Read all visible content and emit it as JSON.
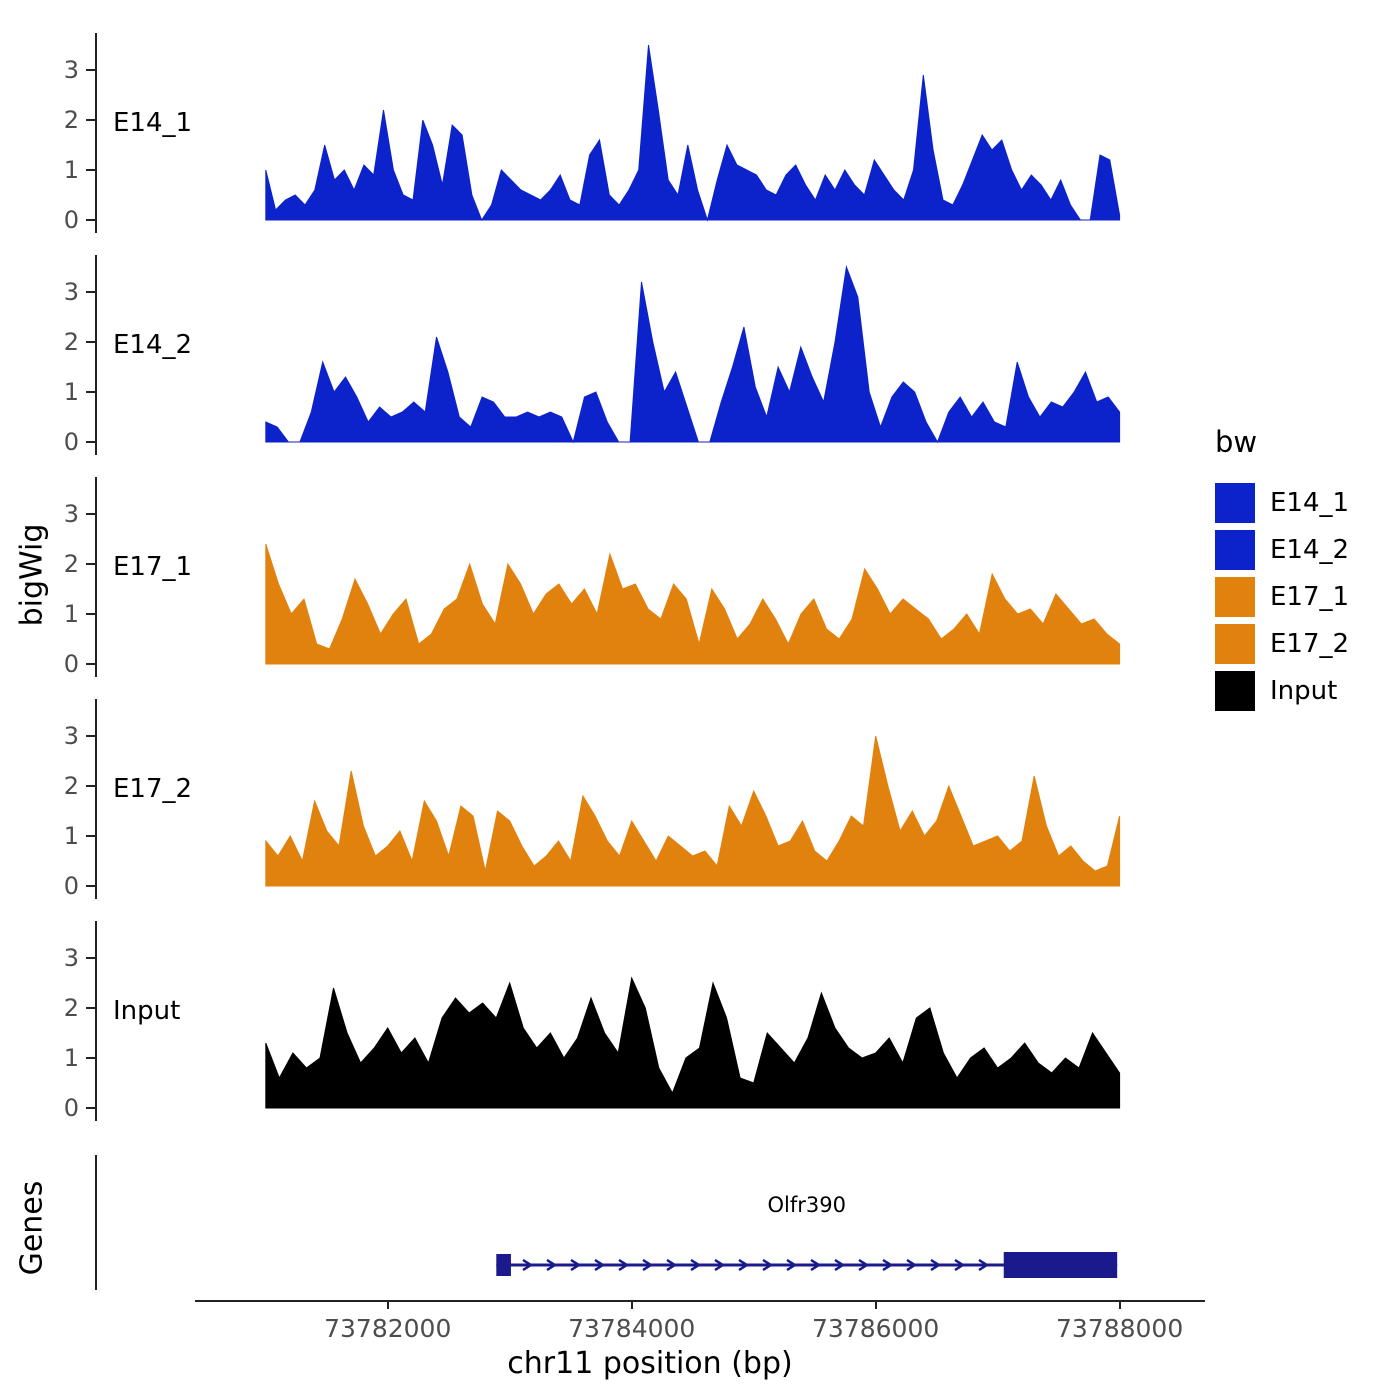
{
  "ylabel": "bigWig",
  "genes_label": "Genes",
  "legend": {
    "title": "bw",
    "items": [
      {
        "label": "E14_1",
        "color": "#0C23CB"
      },
      {
        "label": "E14_2",
        "color": "#0C23CB"
      },
      {
        "label": "E17_1",
        "color": "#E2820E"
      },
      {
        "label": "E17_2",
        "color": "#E2820E"
      },
      {
        "label": "Input",
        "color": "#000000"
      }
    ]
  },
  "axis": {
    "domain": [
      73779600,
      73788700
    ],
    "x_tick_values": [
      73782000,
      73784000,
      73786000,
      73788000
    ],
    "x_tick_labels": [
      "73782000",
      "73784000",
      "73786000",
      "73788000"
    ],
    "y_ticks": [
      0,
      1,
      2,
      3
    ]
  },
  "chart_data": {
    "type": "area",
    "title": "",
    "xlabel": "chr11 position (bp)",
    "ylabel": "bigWig",
    "x_start": 73781000,
    "x_end": 73788000,
    "ylim": [
      0,
      3.5
    ],
    "x_ticks": [
      73782000,
      73784000,
      73786000,
      73788000
    ],
    "y_ticks": [
      0,
      1,
      2,
      3
    ],
    "legend_title": "bw",
    "series": [
      {
        "name": "E14_1",
        "color": "#0C23CB",
        "values": [
          1.0,
          0.2,
          0.4,
          0.5,
          0.3,
          0.6,
          1.5,
          0.8,
          1.0,
          0.6,
          1.1,
          0.9,
          2.2,
          1.0,
          0.5,
          0.4,
          2.0,
          1.5,
          0.7,
          1.9,
          1.7,
          0.5,
          0.0,
          0.3,
          1.0,
          0.8,
          0.6,
          0.5,
          0.4,
          0.6,
          0.9,
          0.4,
          0.3,
          1.3,
          1.6,
          0.5,
          0.3,
          0.6,
          1.0,
          3.5,
          2.2,
          0.8,
          0.5,
          1.5,
          0.6,
          0.0,
          0.8,
          1.5,
          1.1,
          1.0,
          0.9,
          0.6,
          0.5,
          0.9,
          1.1,
          0.7,
          0.4,
          0.9,
          0.6,
          1.0,
          0.7,
          0.5,
          1.2,
          0.9,
          0.6,
          0.4,
          1.0,
          2.9,
          1.4,
          0.4,
          0.3,
          0.7,
          1.2,
          1.7,
          1.4,
          1.6,
          1.0,
          0.6,
          0.9,
          0.7,
          0.4,
          0.8,
          0.3,
          0.0,
          0.0,
          1.3,
          1.2,
          0.1
        ]
      },
      {
        "name": "E14_2",
        "color": "#0C23CB",
        "values": [
          0.4,
          0.3,
          0.0,
          0.0,
          0.6,
          1.6,
          1.0,
          1.3,
          0.9,
          0.4,
          0.7,
          0.5,
          0.6,
          0.8,
          0.6,
          2.1,
          1.4,
          0.5,
          0.3,
          0.9,
          0.8,
          0.5,
          0.5,
          0.6,
          0.5,
          0.6,
          0.5,
          0.0,
          0.9,
          1.0,
          0.4,
          0.0,
          0.0,
          3.2,
          2.0,
          1.0,
          1.4,
          0.7,
          0.0,
          0.0,
          0.8,
          1.5,
          2.3,
          1.1,
          0.5,
          1.5,
          1.0,
          1.9,
          1.3,
          0.8,
          2.0,
          3.5,
          2.9,
          1.0,
          0.3,
          0.9,
          1.2,
          1.0,
          0.4,
          0.0,
          0.6,
          0.9,
          0.5,
          0.8,
          0.4,
          0.3,
          1.6,
          0.9,
          0.5,
          0.8,
          0.7,
          1.0,
          1.4,
          0.8,
          0.9,
          0.6
        ]
      },
      {
        "name": "E17_1",
        "color": "#E2820E",
        "values": [
          2.4,
          1.6,
          1.0,
          1.3,
          0.4,
          0.3,
          0.9,
          1.7,
          1.2,
          0.6,
          1.0,
          1.3,
          0.4,
          0.6,
          1.1,
          1.3,
          2.0,
          1.2,
          0.8,
          2.0,
          1.6,
          1.0,
          1.4,
          1.6,
          1.2,
          1.5,
          1.0,
          2.2,
          1.5,
          1.6,
          1.1,
          0.9,
          1.6,
          1.3,
          0.4,
          1.5,
          1.1,
          0.5,
          0.8,
          1.3,
          0.9,
          0.4,
          1.0,
          1.3,
          0.7,
          0.5,
          0.9,
          1.9,
          1.5,
          1.0,
          1.3,
          1.1,
          0.9,
          0.5,
          0.7,
          1.0,
          0.6,
          1.8,
          1.3,
          1.0,
          1.1,
          0.8,
          1.4,
          1.1,
          0.8,
          0.9,
          0.6,
          0.4
        ]
      },
      {
        "name": "E17_2",
        "color": "#E2820E",
        "values": [
          0.9,
          0.6,
          1.0,
          0.5,
          1.7,
          1.1,
          0.8,
          2.3,
          1.2,
          0.6,
          0.8,
          1.1,
          0.5,
          1.7,
          1.3,
          0.6,
          1.6,
          1.4,
          0.3,
          1.5,
          1.3,
          0.8,
          0.4,
          0.6,
          0.9,
          0.5,
          1.8,
          1.4,
          0.9,
          0.6,
          1.3,
          0.9,
          0.5,
          1.0,
          0.8,
          0.6,
          0.7,
          0.4,
          1.6,
          1.2,
          1.9,
          1.4,
          0.8,
          0.9,
          1.3,
          0.7,
          0.5,
          0.9,
          1.4,
          1.2,
          3.0,
          2.0,
          1.1,
          1.5,
          1.0,
          1.3,
          2.0,
          1.4,
          0.8,
          0.9,
          1.0,
          0.7,
          0.9,
          2.2,
          1.2,
          0.6,
          0.8,
          0.5,
          0.3,
          0.4,
          1.4
        ]
      },
      {
        "name": "Input",
        "color": "#000000",
        "values": [
          1.3,
          0.6,
          1.1,
          0.8,
          1.0,
          2.4,
          1.5,
          0.9,
          1.2,
          1.6,
          1.1,
          1.4,
          0.9,
          1.8,
          2.2,
          1.9,
          2.1,
          1.8,
          2.5,
          1.6,
          1.2,
          1.5,
          1.0,
          1.4,
          2.2,
          1.5,
          1.1,
          2.6,
          2.0,
          0.8,
          0.3,
          1.0,
          1.2,
          2.5,
          1.8,
          0.6,
          0.5,
          1.5,
          1.2,
          0.9,
          1.4,
          2.3,
          1.6,
          1.2,
          1.0,
          1.1,
          1.4,
          0.9,
          1.8,
          2.0,
          1.1,
          0.6,
          1.0,
          1.2,
          0.8,
          1.0,
          1.3,
          0.9,
          0.7,
          1.0,
          0.8,
          1.5,
          1.1,
          0.7
        ]
      }
    ],
    "gene": {
      "name": "Olfr390",
      "start": 73782890,
      "end": 73787980,
      "thin_exon": [
        73782890,
        73783010
      ],
      "thick_exon": [
        73787050,
        73787980
      ],
      "strand": "+",
      "color": "#1A1A8C"
    }
  }
}
